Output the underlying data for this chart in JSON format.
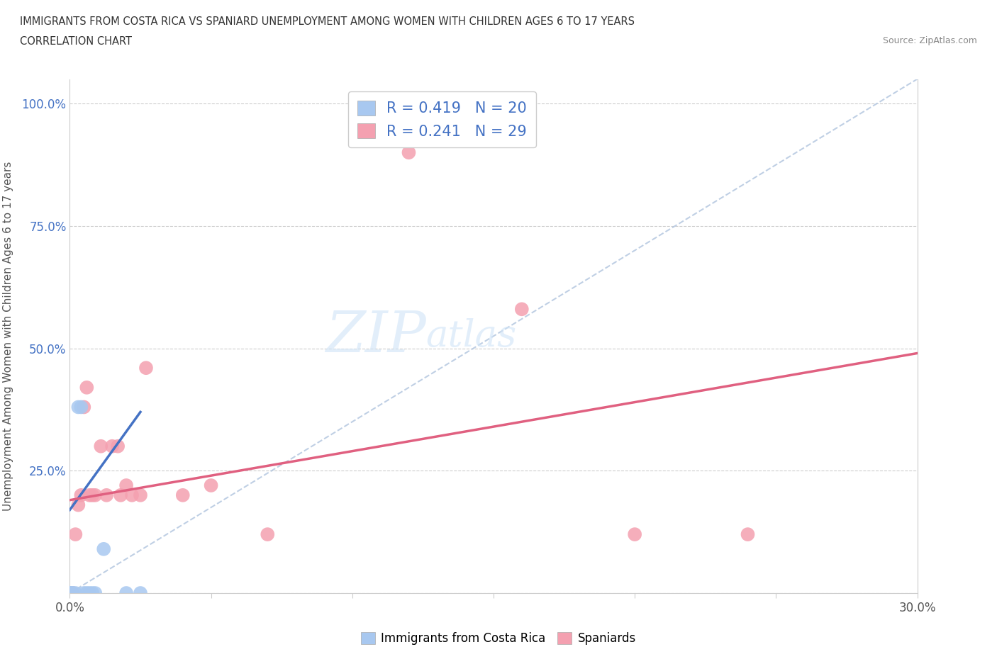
{
  "title_line1": "IMMIGRANTS FROM COSTA RICA VS SPANIARD UNEMPLOYMENT AMONG WOMEN WITH CHILDREN AGES 6 TO 17 YEARS",
  "title_line2": "CORRELATION CHART",
  "source": "Source: ZipAtlas.com",
  "ylabel": "Unemployment Among Women with Children Ages 6 to 17 years",
  "xlim": [
    0.0,
    0.3
  ],
  "ylim": [
    0.0,
    1.05
  ],
  "xticks": [
    0.0,
    0.05,
    0.1,
    0.15,
    0.2,
    0.25,
    0.3
  ],
  "xticklabels": [
    "0.0%",
    "",
    "",
    "",
    "",
    "",
    "30.0%"
  ],
  "yticks": [
    0.0,
    0.25,
    0.5,
    0.75,
    1.0
  ],
  "yticklabels": [
    "",
    "25.0%",
    "50.0%",
    "75.0%",
    "100.0%"
  ],
  "costa_rica_color": "#a8c8f0",
  "spaniard_color": "#f4a0b0",
  "costa_rica_R": 0.419,
  "costa_rica_N": 20,
  "spaniard_R": 0.241,
  "spaniard_N": 29,
  "diagonal_color": "#b0c4de",
  "costa_rica_trend_color": "#4472c4",
  "spaniard_trend_color": "#e06080",
  "watermark_zip": "ZIP",
  "watermark_atlas": "atlas",
  "costa_rica_x": [
    0.0,
    0.0,
    0.0,
    0.0,
    0.0,
    0.0,
    0.0,
    0.001,
    0.001,
    0.002,
    0.003,
    0.004,
    0.005,
    0.006,
    0.007,
    0.008,
    0.009,
    0.012,
    0.02,
    0.025
  ],
  "costa_rica_y": [
    0.0,
    0.0,
    0.0,
    0.0,
    0.0,
    0.0,
    0.0,
    0.0,
    0.0,
    0.0,
    0.38,
    0.38,
    0.0,
    0.0,
    0.0,
    0.0,
    0.0,
    0.09,
    0.0,
    0.0
  ],
  "spaniard_x": [
    0.0,
    0.0,
    0.0,
    0.0,
    0.001,
    0.002,
    0.003,
    0.004,
    0.005,
    0.006,
    0.007,
    0.008,
    0.009,
    0.011,
    0.013,
    0.015,
    0.017,
    0.018,
    0.02,
    0.022,
    0.025,
    0.027,
    0.04,
    0.05,
    0.07,
    0.12,
    0.16,
    0.2,
    0.24
  ],
  "spaniard_y": [
    0.0,
    0.0,
    0.0,
    0.0,
    0.0,
    0.12,
    0.18,
    0.2,
    0.38,
    0.42,
    0.2,
    0.2,
    0.2,
    0.3,
    0.2,
    0.3,
    0.3,
    0.2,
    0.22,
    0.2,
    0.2,
    0.46,
    0.2,
    0.22,
    0.12,
    0.9,
    0.58,
    0.12,
    0.12
  ],
  "cr_trend_x0": 0.0,
  "cr_trend_y0": 0.17,
  "cr_trend_x1": 0.025,
  "cr_trend_y1": 0.37,
  "sp_trend_x0": 0.0,
  "sp_trend_y0": 0.19,
  "sp_trend_x1": 0.3,
  "sp_trend_y1": 0.49
}
